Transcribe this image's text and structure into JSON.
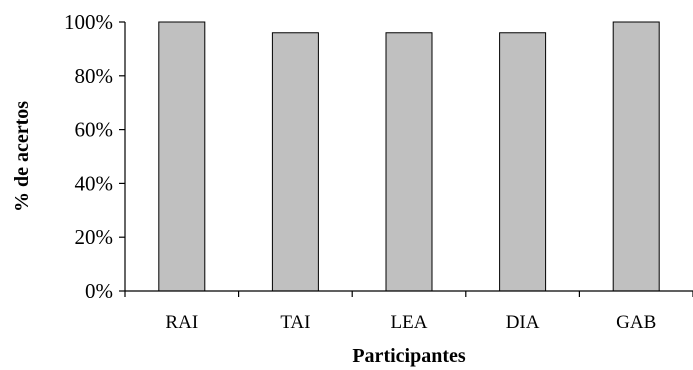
{
  "chart_data": {
    "type": "bar",
    "categories": [
      "RAI",
      "TAI",
      "LEA",
      "DIA",
      "GAB"
    ],
    "values": [
      100,
      96,
      96,
      96,
      100
    ],
    "xlabel": "Participantes",
    "ylabel": "% de acertos",
    "ylim": [
      0,
      100
    ],
    "yticks": [
      0,
      20,
      40,
      60,
      80,
      100
    ],
    "ytick_labels": [
      "0%",
      "20%",
      "40%",
      "60%",
      "80%",
      "100%"
    ],
    "grid": false,
    "legend": "none",
    "bar_color": "#c0c0c0",
    "bar_edge_color": "#000000"
  }
}
